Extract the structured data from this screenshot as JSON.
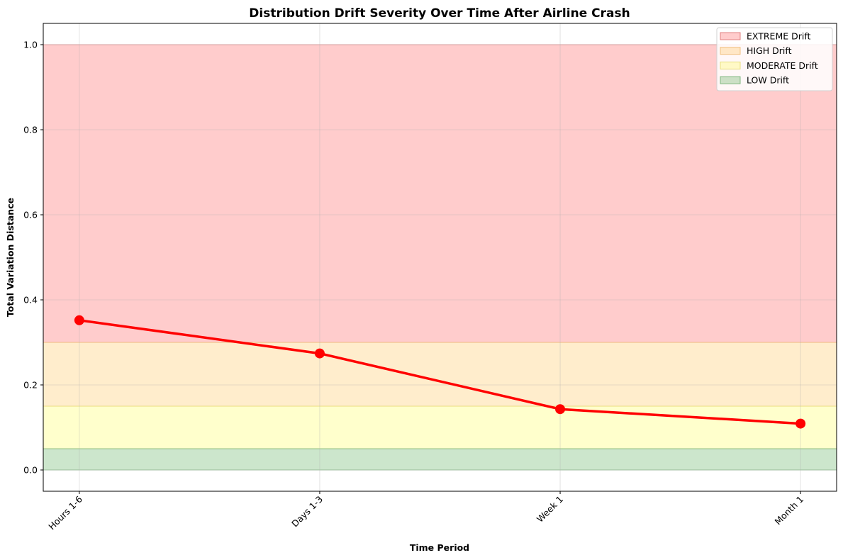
{
  "chart_data": {
    "type": "line",
    "title": "Distribution Drift Severity Over Time After Airline Crash",
    "xlabel": "Time Period",
    "ylabel": "Total Variation Distance",
    "categories": [
      "Hours 1-6",
      "Days 1-3",
      "Week 1",
      "Month 1"
    ],
    "series": [
      {
        "values": [
          0.352,
          0.274,
          0.143,
          0.109
        ],
        "color": "#ff0000"
      }
    ],
    "ylim": [
      -0.05,
      1.05
    ],
    "yticks": [
      0.0,
      0.2,
      0.4,
      0.6,
      0.8,
      1.0
    ],
    "ytick_labels": [
      "0.0",
      "0.2",
      "0.4",
      "0.6",
      "0.8",
      "1.0"
    ],
    "grid": true,
    "bands": [
      {
        "name": "EXTREME Drift",
        "from": 0.3,
        "to": 1.0,
        "color": "#ff0000",
        "edge": "#e08080"
      },
      {
        "name": "HIGH Drift",
        "from": 0.15,
        "to": 0.3,
        "color": "#ffa500",
        "edge": "#f0c080"
      },
      {
        "name": "MODERATE Drift",
        "from": 0.05,
        "to": 0.15,
        "color": "#ffff00",
        "edge": "#e8e080"
      },
      {
        "name": "LOW Drift",
        "from": 0.0,
        "to": 0.05,
        "color": "#008000",
        "edge": "#80b880"
      }
    ],
    "band_opacity": 0.2,
    "legend_position": "top-right"
  }
}
